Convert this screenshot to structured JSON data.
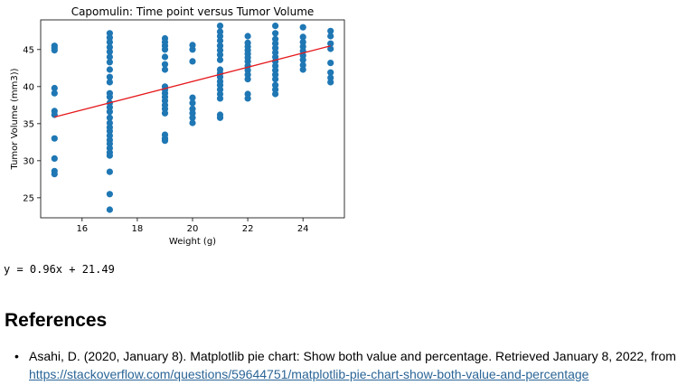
{
  "chart_data": {
    "type": "scatter",
    "title": "Capomulin: Time point versus Tumor Volume",
    "xlabel": "Weight (g)",
    "ylabel": "Tumor Volume (mm3))",
    "xlim": [
      14.5,
      25.5
    ],
    "ylim": [
      22.3,
      49.0
    ],
    "xticks": [
      16,
      18,
      20,
      22,
      24
    ],
    "yticks": [
      25,
      30,
      35,
      40,
      45
    ],
    "grid": false,
    "point_color": "#1f77b4",
    "line_color": "#e6191d",
    "regression": {
      "slope": 0.96,
      "intercept": 21.49,
      "x_range": [
        15,
        25
      ]
    },
    "points": [
      [
        15,
        45.5
      ],
      [
        15,
        45.2
      ],
      [
        15,
        44.9
      ],
      [
        15,
        39.8
      ],
      [
        15,
        39.1
      ],
      [
        15,
        36.7
      ],
      [
        15,
        36.2
      ],
      [
        15,
        33.0
      ],
      [
        15,
        30.3
      ],
      [
        15,
        28.6
      ],
      [
        15,
        28.2
      ],
      [
        17,
        47.2
      ],
      [
        17,
        46.6
      ],
      [
        17,
        46.0
      ],
      [
        17,
        45.3
      ],
      [
        17,
        44.7
      ],
      [
        17,
        44.0
      ],
      [
        17,
        43.3
      ],
      [
        17,
        42.3
      ],
      [
        17,
        41.3
      ],
      [
        17,
        40.6
      ],
      [
        17,
        39.1
      ],
      [
        17,
        38.6
      ],
      [
        17,
        37.8
      ],
      [
        17,
        37.2
      ],
      [
        17,
        36.6
      ],
      [
        17,
        35.8
      ],
      [
        17,
        35.1
      ],
      [
        17,
        34.5
      ],
      [
        17,
        34.0
      ],
      [
        17,
        33.4
      ],
      [
        17,
        32.8
      ],
      [
        17,
        32.3
      ],
      [
        17,
        31.7
      ],
      [
        17,
        31.1
      ],
      [
        17,
        30.7
      ],
      [
        17,
        28.5
      ],
      [
        17,
        25.5
      ],
      [
        17,
        23.4
      ],
      [
        19,
        46.5
      ],
      [
        19,
        46.0
      ],
      [
        19,
        45.5
      ],
      [
        19,
        45.0
      ],
      [
        19,
        44.0
      ],
      [
        19,
        43.0
      ],
      [
        19,
        42.3
      ],
      [
        19,
        40.0
      ],
      [
        19,
        39.6
      ],
      [
        19,
        39.1
      ],
      [
        19,
        38.6
      ],
      [
        19,
        38.1
      ],
      [
        19,
        37.5
      ],
      [
        19,
        37.0
      ],
      [
        19,
        36.4
      ],
      [
        19,
        33.5
      ],
      [
        19,
        33.0
      ],
      [
        19,
        32.7
      ],
      [
        20,
        45.6
      ],
      [
        20,
        45.0
      ],
      [
        20,
        43.4
      ],
      [
        20,
        38.5
      ],
      [
        20,
        37.8
      ],
      [
        20,
        37.0
      ],
      [
        20,
        36.4
      ],
      [
        20,
        35.8
      ],
      [
        20,
        35.1
      ],
      [
        21,
        48.2
      ],
      [
        21,
        47.4
      ],
      [
        21,
        46.8
      ],
      [
        21,
        46.2
      ],
      [
        21,
        45.5
      ],
      [
        21,
        44.9
      ],
      [
        21,
        44.3
      ],
      [
        21,
        43.6
      ],
      [
        21,
        42.3
      ],
      [
        21,
        41.8
      ],
      [
        21,
        41.3
      ],
      [
        21,
        40.7
      ],
      [
        21,
        40.2
      ],
      [
        21,
        39.6
      ],
      [
        21,
        39.0
      ],
      [
        21,
        38.4
      ],
      [
        21,
        36.2
      ],
      [
        21,
        35.8
      ],
      [
        22,
        46.8
      ],
      [
        22,
        45.9
      ],
      [
        22,
        45.4
      ],
      [
        22,
        44.9
      ],
      [
        22,
        44.4
      ],
      [
        22,
        43.9
      ],
      [
        22,
        43.4
      ],
      [
        22,
        42.8
      ],
      [
        22,
        42.2
      ],
      [
        22,
        41.6
      ],
      [
        22,
        41.0
      ],
      [
        22,
        39.0
      ],
      [
        22,
        38.4
      ],
      [
        23,
        48.2
      ],
      [
        23,
        47.2
      ],
      [
        23,
        46.4
      ],
      [
        23,
        45.8
      ],
      [
        23,
        45.2
      ],
      [
        23,
        44.6
      ],
      [
        23,
        44.0
      ],
      [
        23,
        43.4
      ],
      [
        23,
        42.8
      ],
      [
        23,
        42.2
      ],
      [
        23,
        41.6
      ],
      [
        23,
        41.0
      ],
      [
        23,
        40.2
      ],
      [
        23,
        39.6
      ],
      [
        23,
        39.0
      ],
      [
        24,
        48.0
      ],
      [
        24,
        46.7
      ],
      [
        24,
        46.0
      ],
      [
        24,
        45.4
      ],
      [
        24,
        44.8
      ],
      [
        24,
        44.2
      ],
      [
        24,
        43.6
      ],
      [
        24,
        42.9
      ],
      [
        24,
        42.3
      ],
      [
        25,
        47.5
      ],
      [
        25,
        46.8
      ],
      [
        25,
        45.8
      ],
      [
        25,
        45.1
      ],
      [
        25,
        43.2
      ],
      [
        25,
        41.9
      ],
      [
        25,
        41.2
      ],
      [
        25,
        40.6
      ]
    ]
  },
  "output_text": "y = 0.96x + 21.49",
  "references": {
    "heading": "References",
    "items": [
      {
        "bullet": "•",
        "text": "Asahi, D. (2020, January 8). Matplotlib pie chart: Show both value and percentage. Retrieved January 8, 2022, from",
        "link_text": "https://stackoverflow.com/questions/59644751/matplotlib-pie-chart-show-both-value-and-percentage"
      }
    ]
  }
}
